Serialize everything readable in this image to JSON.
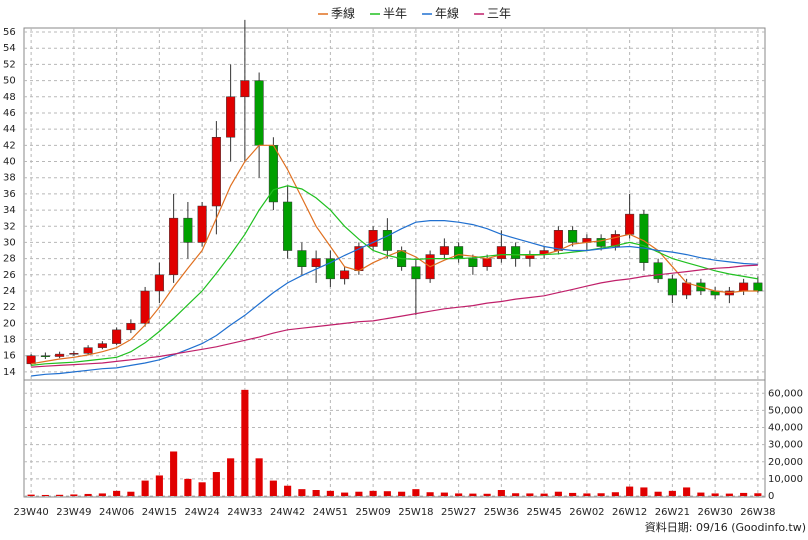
{
  "chart_data": {
    "type": "candlestick",
    "x": [
      "23W40",
      null,
      null,
      "23W49",
      null,
      null,
      "24W06",
      null,
      null,
      "24W15",
      null,
      null,
      "24W24",
      null,
      null,
      "24W33",
      null,
      null,
      "24W42",
      null,
      null,
      "24W51",
      null,
      null,
      "25W09",
      null,
      null,
      "25W18",
      null,
      null,
      "25W27",
      null,
      null,
      "25W36",
      null,
      null,
      "25W45",
      null,
      null,
      "26W02",
      null,
      null,
      "26W12",
      null,
      null,
      "26W21",
      null,
      null,
      "26W30",
      null,
      null,
      "26W38"
    ],
    "open": [
      15,
      16,
      15.9,
      16.2,
      16.3,
      17,
      17.5,
      19.2,
      20,
      24,
      26,
      33,
      30,
      34.5,
      43,
      48,
      50,
      42,
      35,
      29,
      27,
      28,
      25.5,
      26.5,
      29.5,
      31.5,
      29,
      27,
      25.5,
      28.5,
      29.5,
      28,
      27,
      28,
      29.5,
      28,
      28.5,
      29,
      31.5,
      30,
      30.5,
      29.5,
      31,
      33.5,
      27.5,
      25.5,
      23.5,
      25,
      24,
      23.5,
      24,
      25
    ],
    "high": [
      16.2,
      16.4,
      16.5,
      16.6,
      17.3,
      17.8,
      19.5,
      20.5,
      24.5,
      27.5,
      36,
      35,
      35,
      45,
      52,
      57.5,
      51,
      43,
      37,
      30,
      29,
      29,
      27,
      30,
      32,
      33,
      29.5,
      28,
      29,
      30.5,
      30,
      28.5,
      28.5,
      31.5,
      30,
      29,
      29.5,
      32,
      32,
      31,
      31,
      31.5,
      36,
      34,
      28,
      26,
      25.5,
      25.5,
      24.5,
      24.5,
      25.5,
      25.8
    ],
    "low": [
      14.8,
      15.6,
      15.7,
      16,
      16.1,
      16.8,
      17.3,
      18.8,
      19.6,
      22.5,
      25,
      28,
      29.5,
      31,
      40,
      40,
      38,
      34,
      28,
      26,
      25,
      24.5,
      24.8,
      26,
      29,
      28,
      26.5,
      21,
      25,
      28,
      27.5,
      26,
      26.5,
      27.5,
      27,
      27,
      28,
      28.5,
      29.5,
      29,
      29,
      29,
      30.5,
      26.5,
      25,
      22.5,
      23,
      23.5,
      23,
      22.5,
      23.5,
      23.8
    ],
    "close": [
      16,
      15.9,
      16.2,
      16.3,
      17,
      17.5,
      19.2,
      20,
      24,
      26,
      33,
      30,
      34.5,
      43,
      48,
      50,
      42,
      35,
      29,
      27,
      28,
      25.5,
      26.5,
      29.5,
      31.5,
      29,
      27,
      25.5,
      28.5,
      29.5,
      28,
      27,
      28,
      29.5,
      28,
      28.5,
      29,
      31.5,
      30,
      30.5,
      29.5,
      31,
      33.5,
      27.5,
      25.5,
      23.5,
      25,
      24,
      23.5,
      24,
      25,
      24
    ],
    "volume": [
      800,
      600,
      700,
      900,
      1200,
      1500,
      3000,
      2500,
      9000,
      12000,
      26000,
      10000,
      8000,
      14000,
      22000,
      62000,
      22000,
      9000,
      6000,
      4000,
      3500,
      3000,
      2000,
      2500,
      3000,
      2800,
      2500,
      4000,
      2200,
      2000,
      1500,
      1400,
      1300,
      3500,
      1600,
      1500,
      1400,
      2500,
      1800,
      1500,
      1600,
      2200,
      5500,
      5000,
      2500,
      3000,
      5000,
      2000,
      1500,
      1400,
      1800,
      1600
    ],
    "up_color": "#e00000",
    "down_color": "#00a000",
    "volume_color": "#e00000",
    "series": [
      {
        "name": "季線",
        "color": "#e07020",
        "values": [
          15.0,
          15.3,
          15.6,
          15.8,
          16.1,
          16.5,
          17.0,
          18.0,
          19.8,
          22.0,
          24.5,
          26.8,
          29.0,
          33.0,
          37.0,
          40.0,
          42.0,
          42.0,
          39.0,
          35.5,
          32.0,
          29.5,
          27.0,
          26.5,
          27.5,
          28.3,
          29.0,
          28.2,
          27.0,
          27.8,
          28.5,
          28.3,
          28.0,
          28.5,
          28.5,
          28.4,
          28.5,
          29.0,
          29.8,
          30.0,
          30.2,
          30.6,
          31.0,
          30.2,
          29.0,
          27.0,
          25.0,
          24.5,
          24.0,
          23.8,
          24.0,
          24.0
        ]
      },
      {
        "name": "半年",
        "color": "#20c020",
        "values": [
          14.8,
          15.0,
          15.1,
          15.2,
          15.4,
          15.6,
          15.8,
          16.5,
          17.6,
          19.0,
          20.6,
          22.3,
          24.0,
          26.2,
          28.5,
          31.0,
          34.0,
          36.5,
          37.0,
          36.6,
          35.5,
          34.0,
          32.0,
          30.4,
          29.0,
          28.4,
          28.0,
          27.9,
          28.0,
          28.0,
          28.0,
          28.1,
          28.3,
          28.5,
          28.5,
          28.5,
          28.5,
          28.6,
          28.8,
          29.0,
          29.3,
          29.6,
          30.0,
          29.6,
          28.8,
          28.0,
          27.5,
          27.0,
          26.5,
          26.1,
          25.8,
          25.5
        ]
      },
      {
        "name": "年線",
        "color": "#2070d0",
        "values": [
          13.5,
          13.7,
          13.8,
          14.0,
          14.2,
          14.4,
          14.5,
          14.8,
          15.1,
          15.5,
          16.1,
          16.8,
          17.5,
          18.5,
          19.8,
          21.0,
          22.4,
          23.8,
          25.0,
          25.9,
          26.7,
          27.5,
          28.4,
          29.2,
          30.0,
          30.8,
          31.7,
          32.5,
          32.7,
          32.7,
          32.5,
          32.2,
          31.7,
          31.0,
          30.5,
          30.0,
          29.5,
          29.2,
          29.0,
          29.0,
          29.2,
          29.4,
          29.5,
          29.3,
          29.0,
          28.8,
          28.5,
          28.1,
          27.8,
          27.6,
          27.4,
          27.3
        ]
      },
      {
        "name": "三年",
        "color": "#c0206a",
        "values": [
          14.6,
          14.7,
          14.8,
          14.9,
          15.0,
          15.1,
          15.3,
          15.5,
          15.7,
          15.9,
          16.2,
          16.5,
          16.8,
          17.1,
          17.5,
          17.9,
          18.3,
          18.8,
          19.2,
          19.4,
          19.6,
          19.8,
          20.0,
          20.2,
          20.3,
          20.6,
          20.9,
          21.2,
          21.5,
          21.8,
          22.0,
          22.2,
          22.5,
          22.7,
          23.0,
          23.2,
          23.4,
          23.8,
          24.2,
          24.6,
          25.0,
          25.3,
          25.5,
          25.8,
          26.0,
          26.2,
          26.4,
          26.6,
          26.8,
          26.9,
          27.1,
          27.2
        ]
      }
    ],
    "ylim": [
      13,
      56.5
    ],
    "yticks": [
      14,
      16,
      18,
      20,
      22,
      24,
      26,
      28,
      30,
      32,
      34,
      36,
      38,
      40,
      42,
      44,
      46,
      48,
      50,
      52,
      54,
      56
    ],
    "vlim": [
      0,
      66000
    ],
    "vticks": [
      0,
      {
        "value": 10000,
        "label": "10,000"
      },
      {
        "value": 20000,
        "label": "20,000"
      },
      {
        "value": 30000,
        "label": "30,000"
      },
      {
        "value": 40000,
        "label": "40,000"
      },
      {
        "value": 50000,
        "label": "50,000"
      },
      {
        "value": 60000,
        "label": "60,000"
      }
    ],
    "grid": true,
    "legend": "top",
    "footer": "資料日期: 09/16 (Goodinfo.tw)"
  }
}
